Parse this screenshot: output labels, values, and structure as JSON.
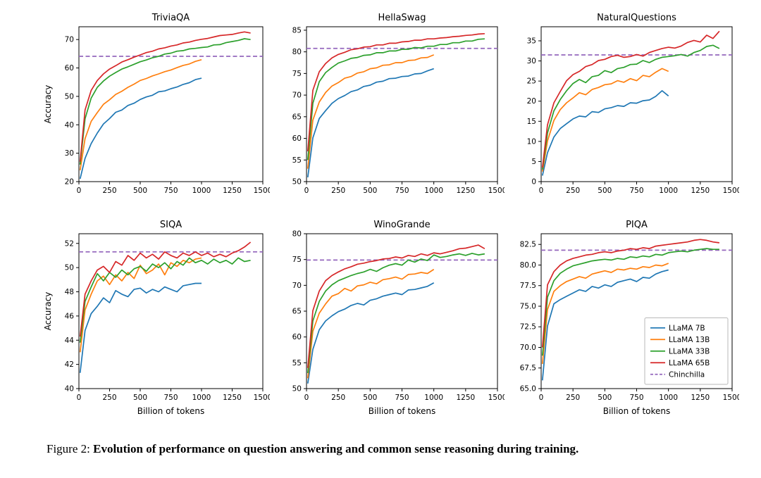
{
  "figure_caption": {
    "prefix": "Figure 2: ",
    "text": "Evolution of performance on question answering and common sense reasoning during training."
  },
  "axis_labels": {
    "x": "Billion of tokens",
    "y": "Accuracy"
  },
  "series_colors": {
    "LLaMA 7B": "#1f77b4",
    "LLaMA 13B": "#ff7f0e",
    "LLaMA 33B": "#2ca02c",
    "LLaMA 65B": "#d62728",
    "Chinchilla": "#9467bd"
  },
  "legend_entries": [
    {
      "label": "LLaMA 7B",
      "dashed": false
    },
    {
      "label": "LLaMA 13B",
      "dashed": false
    },
    {
      "label": "LLaMA 33B",
      "dashed": false
    },
    {
      "label": "LLaMA 65B",
      "dashed": false
    },
    {
      "label": "Chinchilla",
      "dashed": true
    }
  ],
  "x_grids": {
    "x_short": [
      10,
      50,
      100,
      150,
      200,
      250,
      300,
      350,
      400,
      450,
      500,
      550,
      600,
      650,
      700,
      750,
      800,
      850,
      900,
      950,
      1000
    ],
    "x_long": [
      10,
      50,
      100,
      150,
      200,
      250,
      300,
      350,
      400,
      450,
      500,
      550,
      600,
      650,
      700,
      750,
      800,
      850,
      900,
      950,
      1000,
      1050,
      1100,
      1150,
      1200,
      1250,
      1300,
      1350,
      1400
    ]
  },
  "chart_data": [
    {
      "type": "line",
      "title": "TriviaQA",
      "xlim": [
        0,
        1500
      ],
      "xticks": [
        0,
        250,
        500,
        750,
        1000,
        1250,
        1500
      ],
      "ylim": [
        20,
        74.5
      ],
      "yticks": [
        20,
        30,
        40,
        50,
        60,
        70
      ],
      "grid": false,
      "show_ylabel": true,
      "show_xlabel": false,
      "show_legend": false,
      "chinchilla_value": 64.1,
      "series": [
        {
          "name": "LLaMA 7B",
          "x_ref": "x_short",
          "y": [
            21.0,
            28.2,
            33.4,
            37.1,
            40.3,
            42.2,
            44.4,
            45.2,
            46.8,
            47.6,
            48.9,
            49.8,
            50.4,
            51.6,
            51.9,
            52.7,
            53.3,
            54.2,
            54.8,
            55.9,
            56.4
          ]
        },
        {
          "name": "LLaMA 13B",
          "x_ref": "x_short",
          "y": [
            24.0,
            35.1,
            41.2,
            44.3,
            47.2,
            48.8,
            50.7,
            51.8,
            53.2,
            54.3,
            55.6,
            56.3,
            57.2,
            57.9,
            58.7,
            59.3,
            60.1,
            60.9,
            61.4,
            62.3,
            62.9
          ]
        },
        {
          "name": "LLaMA 33B",
          "x_ref": "x_long",
          "y": [
            26.0,
            42.1,
            49.4,
            53.2,
            55.4,
            57.1,
            58.4,
            59.6,
            60.4,
            61.3,
            62.2,
            62.8,
            63.6,
            64.1,
            64.9,
            65.2,
            65.9,
            66.1,
            66.7,
            66.9,
            67.2,
            67.4,
            68.1,
            68.2,
            68.9,
            69.3,
            69.7,
            70.3,
            70.0
          ]
        },
        {
          "name": "LLaMA 65B",
          "x_ref": "x_long",
          "y": [
            27.0,
            45.2,
            52.1,
            55.6,
            57.9,
            59.6,
            60.8,
            62.1,
            62.9,
            63.8,
            64.6,
            65.4,
            65.9,
            66.7,
            67.1,
            67.7,
            68.1,
            68.8,
            69.1,
            69.7,
            70.1,
            70.4,
            70.9,
            71.4,
            71.6,
            71.8,
            72.3,
            72.7,
            72.3
          ]
        }
      ]
    },
    {
      "type": "line",
      "title": "HellaSwag",
      "xlim": [
        0,
        1500
      ],
      "xticks": [
        0,
        250,
        500,
        750,
        1000,
        1250,
        1500
      ],
      "ylim": [
        50,
        85.8
      ],
      "yticks": [
        50,
        55,
        60,
        65,
        70,
        75,
        80,
        85
      ],
      "grid": false,
      "show_ylabel": false,
      "show_xlabel": false,
      "show_legend": false,
      "chinchilla_value": 80.8,
      "series": [
        {
          "name": "LLaMA 7B",
          "x_ref": "x_short",
          "y": [
            51.0,
            60.1,
            64.6,
            66.4,
            68.1,
            69.2,
            69.9,
            70.8,
            71.2,
            72.0,
            72.3,
            73.0,
            73.2,
            73.8,
            73.9,
            74.3,
            74.4,
            74.9,
            75.0,
            75.6,
            76.1
          ]
        },
        {
          "name": "LLaMA 13B",
          "x_ref": "x_short",
          "y": [
            53.0,
            64.2,
            68.4,
            70.6,
            72.1,
            72.9,
            73.9,
            74.3,
            75.1,
            75.4,
            76.1,
            76.3,
            76.9,
            77.0,
            77.5,
            77.5,
            78.0,
            78.1,
            78.6,
            78.7,
            79.3
          ]
        },
        {
          "name": "LLaMA 33B",
          "x_ref": "x_long",
          "y": [
            55.0,
            68.1,
            73.1,
            75.2,
            76.4,
            77.4,
            77.9,
            78.5,
            78.7,
            79.2,
            79.3,
            79.8,
            79.8,
            80.2,
            80.2,
            80.6,
            80.6,
            81.0,
            80.9,
            81.3,
            81.3,
            81.7,
            81.7,
            82.1,
            82.1,
            82.5,
            82.5,
            82.9,
            83.0
          ]
        },
        {
          "name": "LLaMA 65B",
          "x_ref": "x_long",
          "y": [
            57.0,
            71.1,
            75.4,
            77.3,
            78.6,
            79.4,
            79.9,
            80.5,
            80.7,
            81.1,
            81.2,
            81.6,
            81.6,
            82.0,
            82.0,
            82.3,
            82.4,
            82.7,
            82.7,
            83.0,
            83.0,
            83.2,
            83.3,
            83.5,
            83.6,
            83.8,
            83.9,
            84.1,
            84.2
          ]
        }
      ]
    },
    {
      "type": "line",
      "title": "NaturalQuestions",
      "xlim": [
        0,
        1500
      ],
      "xticks": [
        0,
        250,
        500,
        750,
        1000,
        1250,
        1500
      ],
      "ylim": [
        0,
        38.5
      ],
      "yticks": [
        0,
        5,
        10,
        15,
        20,
        25,
        30,
        35
      ],
      "grid": false,
      "show_ylabel": false,
      "show_xlabel": false,
      "show_legend": false,
      "chinchilla_value": 31.5,
      "series": [
        {
          "name": "LLaMA 7B",
          "x_ref": "x_short",
          "y": [
            1.5,
            7.2,
            11.1,
            13.2,
            14.4,
            15.6,
            16.3,
            16.1,
            17.4,
            17.2,
            18.1,
            18.4,
            18.9,
            18.7,
            19.6,
            19.5,
            20.1,
            20.3,
            21.2,
            22.6,
            21.3
          ]
        },
        {
          "name": "LLaMA 13B",
          "x_ref": "x_short",
          "y": [
            2.5,
            10.1,
            15.2,
            17.9,
            19.6,
            20.8,
            22.1,
            21.6,
            22.9,
            23.4,
            24.1,
            24.3,
            25.1,
            24.7,
            25.6,
            25.1,
            26.4,
            26.1,
            27.2,
            28.1,
            27.4
          ]
        },
        {
          "name": "LLaMA 33B",
          "x_ref": "x_long",
          "y": [
            3.0,
            12.1,
            17.6,
            20.4,
            22.6,
            24.4,
            25.4,
            24.6,
            26.1,
            26.4,
            27.6,
            27.1,
            28.1,
            28.4,
            29.1,
            29.2,
            30.1,
            29.6,
            30.4,
            30.9,
            31.1,
            31.3,
            31.6,
            31.2,
            32.1,
            32.6,
            33.6,
            33.9,
            33.1
          ]
        },
        {
          "name": "LLaMA 65B",
          "x_ref": "x_long",
          "y": [
            3.5,
            14.1,
            19.6,
            22.4,
            25.1,
            26.6,
            27.4,
            28.6,
            29.1,
            30.1,
            30.4,
            31.1,
            31.4,
            30.9,
            31.1,
            31.6,
            31.2,
            32.1,
            32.6,
            33.1,
            33.4,
            33.2,
            33.7,
            34.6,
            35.1,
            34.7,
            36.4,
            35.6,
            37.4
          ]
        }
      ]
    },
    {
      "type": "line",
      "title": "SIQA",
      "xlim": [
        0,
        1500
      ],
      "xticks": [
        0,
        250,
        500,
        750,
        1000,
        1250,
        1500
      ],
      "ylim": [
        40,
        52.8
      ],
      "yticks": [
        40,
        42,
        44,
        46,
        48,
        50,
        52
      ],
      "grid": false,
      "show_ylabel": true,
      "show_xlabel": true,
      "show_legend": false,
      "chinchilla_value": 51.3,
      "series": [
        {
          "name": "LLaMA 7B",
          "x_ref": "x_short",
          "y": [
            41.3,
            44.8,
            46.2,
            46.8,
            47.5,
            47.1,
            48.1,
            47.8,
            47.6,
            48.2,
            48.3,
            47.9,
            48.2,
            48.0,
            48.4,
            48.2,
            48.0,
            48.5,
            48.6,
            48.7,
            48.7
          ]
        },
        {
          "name": "LLaMA 13B",
          "x_ref": "x_short",
          "y": [
            43.0,
            46.5,
            47.8,
            48.9,
            49.3,
            48.6,
            49.4,
            48.9,
            49.6,
            49.1,
            50.2,
            49.5,
            49.8,
            50.3,
            49.4,
            50.4,
            50.1,
            50.6,
            50.4,
            50.7,
            50.8
          ]
        },
        {
          "name": "LLaMA 33B",
          "x_ref": "x_long",
          "y": [
            43.8,
            47.2,
            48.4,
            49.5,
            48.9,
            49.6,
            49.2,
            49.8,
            49.4,
            49.9,
            50.1,
            49.7,
            50.3,
            50.0,
            50.4,
            49.9,
            50.5,
            50.2,
            50.8,
            50.4,
            50.6,
            50.3,
            50.7,
            50.4,
            50.6,
            50.3,
            50.8,
            50.5,
            50.6
          ]
        },
        {
          "name": "LLaMA 65B",
          "x_ref": "x_long",
          "y": [
            44.3,
            47.8,
            48.9,
            49.8,
            50.1,
            49.6,
            50.5,
            50.2,
            51.0,
            50.6,
            51.2,
            50.8,
            51.1,
            50.7,
            51.3,
            51.0,
            50.8,
            51.2,
            51.0,
            51.3,
            51.0,
            51.2,
            50.9,
            51.1,
            50.9,
            51.2,
            51.4,
            51.7,
            52.1
          ]
        }
      ]
    },
    {
      "type": "line",
      "title": "WinoGrande",
      "xlim": [
        0,
        1500
      ],
      "xticks": [
        0,
        250,
        500,
        750,
        1000,
        1250,
        1500
      ],
      "ylim": [
        50,
        80
      ],
      "yticks": [
        50,
        55,
        60,
        65,
        70,
        75,
        80
      ],
      "grid": false,
      "show_ylabel": false,
      "show_xlabel": true,
      "show_legend": false,
      "chinchilla_value": 74.9,
      "series": [
        {
          "name": "LLaMA 7B",
          "x_ref": "x_short",
          "y": [
            51.0,
            57.6,
            61.4,
            63.1,
            64.1,
            64.9,
            65.4,
            66.1,
            66.5,
            66.2,
            67.1,
            67.4,
            67.9,
            68.2,
            68.5,
            68.2,
            69.1,
            69.2,
            69.5,
            69.8,
            70.5
          ]
        },
        {
          "name": "LLaMA 13B",
          "x_ref": "x_short",
          "y": [
            52.0,
            61.1,
            64.6,
            66.4,
            67.9,
            68.4,
            69.4,
            68.9,
            69.9,
            70.1,
            70.6,
            70.3,
            71.1,
            71.3,
            71.6,
            71.2,
            72.1,
            72.2,
            72.5,
            72.3,
            73.1
          ]
        },
        {
          "name": "LLaMA 33B",
          "x_ref": "x_long",
          "y": [
            53.0,
            63.1,
            66.9,
            68.9,
            70.1,
            70.9,
            71.4,
            71.9,
            72.3,
            72.6,
            73.1,
            72.7,
            73.4,
            73.9,
            74.2,
            73.9,
            74.9,
            74.5,
            75.1,
            74.8,
            75.9,
            75.4,
            75.6,
            75.9,
            76.1,
            75.8,
            76.2,
            75.9,
            76.1
          ]
        },
        {
          "name": "LLaMA 65B",
          "x_ref": "x_long",
          "y": [
            54.0,
            65.1,
            68.9,
            70.9,
            71.9,
            72.6,
            73.2,
            73.6,
            74.1,
            74.3,
            74.6,
            74.8,
            75.1,
            75.2,
            75.5,
            75.3,
            75.8,
            75.6,
            76.1,
            75.8,
            76.3,
            76.1,
            76.4,
            76.7,
            77.1,
            77.2,
            77.5,
            77.8,
            77.1
          ]
        }
      ]
    },
    {
      "type": "line",
      "title": "PIQA",
      "xlim": [
        0,
        1500
      ],
      "xticks": [
        0,
        250,
        500,
        750,
        1000,
        1250,
        1500
      ],
      "ylim": [
        65,
        83.8
      ],
      "yticks": [
        65,
        67.5,
        70,
        72.5,
        75,
        77.5,
        80,
        82.5
      ],
      "grid": false,
      "show_ylabel": false,
      "show_xlabel": true,
      "show_legend": true,
      "legend_position": "lower right",
      "chinchilla_value": 81.8,
      "series": [
        {
          "name": "LLaMA 7B",
          "x_ref": "x_short",
          "y": [
            66.0,
            72.6,
            75.3,
            75.8,
            76.2,
            76.6,
            77.0,
            76.8,
            77.4,
            77.2,
            77.6,
            77.4,
            77.9,
            78.1,
            78.3,
            78.0,
            78.5,
            78.4,
            78.9,
            79.2,
            79.4
          ]
        },
        {
          "name": "LLaMA 13B",
          "x_ref": "x_short",
          "y": [
            68.0,
            74.6,
            76.8,
            77.5,
            78.0,
            78.3,
            78.6,
            78.4,
            78.9,
            79.1,
            79.3,
            79.1,
            79.5,
            79.4,
            79.6,
            79.5,
            79.8,
            79.7,
            80.0,
            79.9,
            80.2
          ]
        },
        {
          "name": "LLaMA 33B",
          "x_ref": "x_long",
          "y": [
            69.0,
            76.1,
            78.1,
            79.0,
            79.5,
            79.9,
            80.1,
            80.3,
            80.5,
            80.6,
            80.7,
            80.6,
            80.8,
            80.7,
            81.0,
            80.9,
            81.1,
            81.0,
            81.3,
            81.2,
            81.5,
            81.6,
            81.7,
            81.6,
            81.8,
            81.9,
            82.0,
            81.9,
            81.9
          ]
        },
        {
          "name": "LLaMA 65B",
          "x_ref": "x_long",
          "y": [
            70.0,
            77.6,
            79.2,
            80.0,
            80.5,
            80.8,
            81.0,
            81.2,
            81.3,
            81.5,
            81.6,
            81.5,
            81.7,
            81.8,
            82.0,
            81.9,
            82.1,
            82.0,
            82.3,
            82.4,
            82.5,
            82.6,
            82.7,
            82.8,
            83.0,
            83.1,
            83.0,
            82.8,
            82.7
          ]
        }
      ]
    }
  ]
}
